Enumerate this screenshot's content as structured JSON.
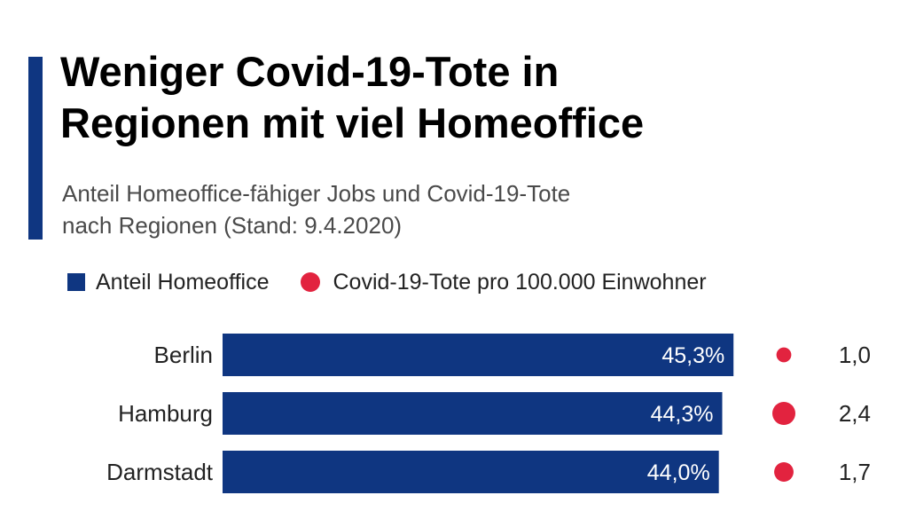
{
  "title_line1": "Weniger Covid-19-Tote in",
  "title_line2": "Regionen mit viel Homeoffice",
  "subtitle_line1": "Anteil Homeoffice-fähiger Jobs und Covid-19-Tote",
  "subtitle_line2": "nach Regionen (Stand: 9.4.2020)",
  "colors": {
    "bar": "#0f3681",
    "dot": "#e2233f",
    "accent": "#0f3681"
  },
  "chart_data": {
    "type": "bar",
    "orientation": "horizontal",
    "legend": [
      {
        "label": "Anteil Homeoffice",
        "marker": "square"
      },
      {
        "label": "Covid-19-Tote pro 100.000 Einwohner",
        "marker": "circle"
      }
    ],
    "categories": [
      "Berlin",
      "Hamburg",
      "Darmstadt"
    ],
    "series": [
      {
        "name": "Anteil Homeoffice",
        "values": [
          45.3,
          44.3,
          44.0
        ],
        "labels": [
          "45,3%",
          "44,3%",
          "44,0%"
        ]
      },
      {
        "name": "Covid-19-Tote pro 100.000 Einwohner",
        "values": [
          1.0,
          2.4,
          1.7
        ],
        "labels": [
          "1,0",
          "2,4",
          "1,7"
        ]
      }
    ]
  }
}
